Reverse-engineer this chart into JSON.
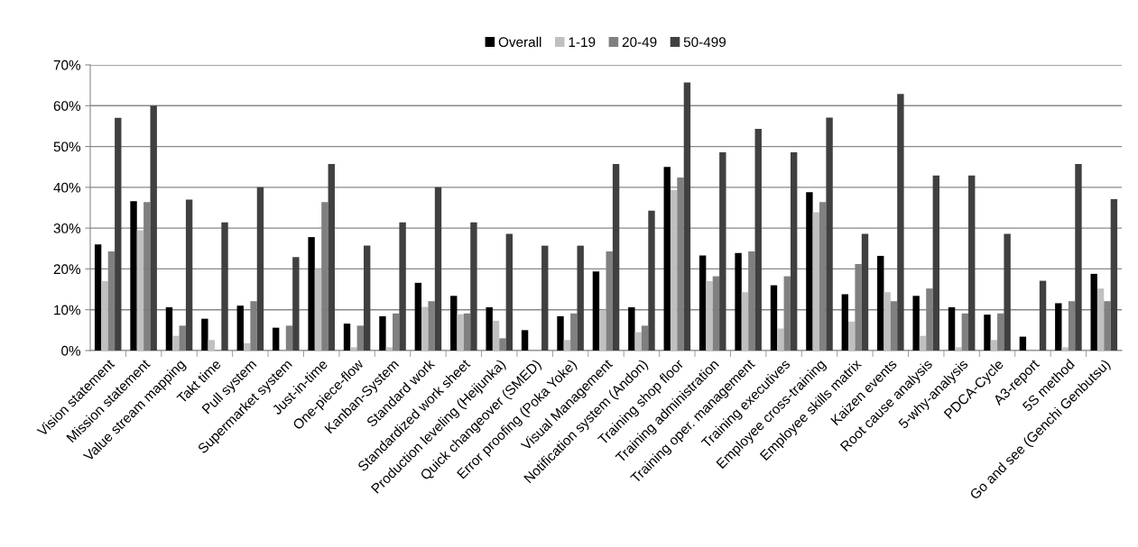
{
  "chart_data": {
    "type": "bar",
    "categories": [
      "Vision statement",
      "Mission statement",
      "Value stream mapping",
      "Takt time",
      "Pull system",
      "Supermarket system",
      "Just-in-time",
      "One-piece-flow",
      "Kanban-System",
      "Standard work",
      "Standardized work sheet",
      "Production leveling (Heijunka)",
      "Quick changeover (SMED)",
      "Error proofing (Poka Yoke)",
      "Visual Management",
      "Notification system (Andon)",
      "Training shop floor",
      "Training administration",
      "Training oper. management",
      "Training executives",
      "Employee cross-training",
      "Employee skills matrix",
      "Kaizen events",
      "Root cause analysis",
      "5-why-analysis",
      "PDCA-Cycle",
      "A3-report",
      "5S method",
      "Go and see (Genchi Genbutsu)"
    ],
    "series": [
      {
        "name": "Overall",
        "color": "#000000",
        "values": [
          26,
          36.6,
          10.6,
          7.8,
          11,
          5.6,
          27.8,
          6.6,
          8.4,
          16.6,
          13.4,
          10.6,
          5,
          8.4,
          19.4,
          10.6,
          45,
          23.3,
          23.9,
          16,
          38.8,
          13.8,
          23.2,
          13.4,
          10.6,
          8.8,
          3.4,
          11.6,
          18.8
        ]
      },
      {
        "name": "1-19",
        "color": "#c0c0c0",
        "values": [
          17,
          29.5,
          3.6,
          2.6,
          1.8,
          0,
          20,
          0.8,
          0.8,
          10.7,
          8.9,
          7.3,
          0,
          2.6,
          9.8,
          4.5,
          39.3,
          17,
          14.3,
          5.4,
          33.9,
          7.1,
          14.3,
          3.6,
          0.8,
          2.6,
          0,
          0.8,
          15.2
        ]
      },
      {
        "name": "20-49",
        "color": "#808080",
        "values": [
          24.3,
          36.4,
          6.1,
          0,
          12.1,
          6.1,
          36.4,
          6.1,
          9.1,
          12.1,
          9.1,
          3,
          0,
          9.1,
          24.3,
          6.1,
          42.4,
          18.2,
          24.3,
          18.2,
          36.4,
          21.2,
          12.1,
          15.2,
          9.1,
          9.1,
          0,
          12.1,
          12.1
        ]
      },
      {
        "name": "50-499",
        "color": "#404040",
        "values": [
          57,
          60,
          37,
          31.4,
          40,
          22.9,
          45.7,
          25.7,
          31.4,
          40,
          31.4,
          28.6,
          25.7,
          25.7,
          45.7,
          34.3,
          65.7,
          48.6,
          54.3,
          48.6,
          57.1,
          28.6,
          62.9,
          42.9,
          42.9,
          28.6,
          17.1,
          45.7,
          37.1
        ]
      }
    ],
    "ylim": [
      0,
      70
    ],
    "yticks": [
      {
        "value": 0,
        "label": "0%"
      },
      {
        "value": 10,
        "label": "10%"
      },
      {
        "value": 20,
        "label": "20%"
      },
      {
        "value": 30,
        "label": "30%"
      },
      {
        "value": 40,
        "label": "40%"
      },
      {
        "value": 50,
        "label": "50%"
      },
      {
        "value": 60,
        "label": "60%"
      },
      {
        "value": 70,
        "label": "70%"
      }
    ],
    "grid": "y",
    "legend": "top"
  }
}
